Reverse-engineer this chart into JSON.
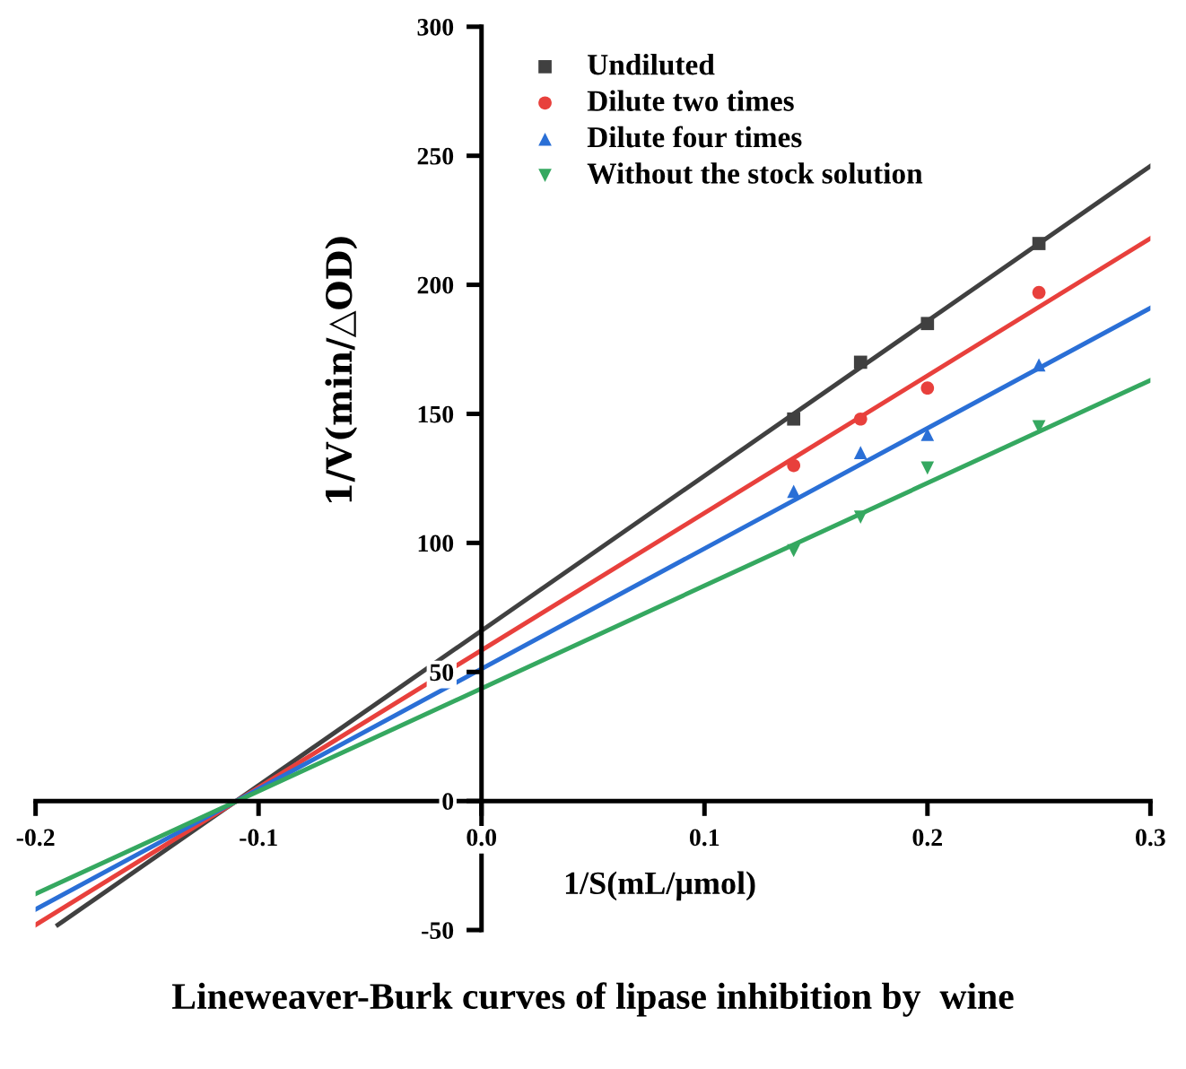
{
  "chart_data": {
    "type": "scatter",
    "title": "Lineweaver-Burk curves of lipase inhibition by  wine",
    "xlabel": "1/S(mL/μmol)",
    "ylabel": "1/V(min/△OD)",
    "xlim": [
      -0.2,
      0.3
    ],
    "ylim": [
      -50,
      300
    ],
    "xticks": [
      {
        "value": -0.2,
        "label": "-0.2"
      },
      {
        "value": -0.1,
        "label": "-0.1"
      },
      {
        "value": 0,
        "label": "0.0"
      },
      0.1,
      0.2,
      0.3
    ],
    "yticks": [
      {
        "value": -50,
        "label": "-50"
      },
      0,
      50,
      100,
      150,
      200,
      250,
      300
    ],
    "legend": "top right",
    "grid": false,
    "series": [
      {
        "name": "Undiluted",
        "marker": "square",
        "color": "#404040",
        "x": [
          0.14,
          0.17,
          0.2,
          0.25
        ],
        "values": [
          148,
          170,
          185,
          216
        ]
      },
      {
        "name": "Dilute two times",
        "marker": "circle",
        "color": "#e8403c",
        "x": [
          0.14,
          0.17,
          0.2,
          0.25
        ],
        "values": [
          130,
          148,
          160,
          197
        ]
      },
      {
        "name": "Dilute four times",
        "marker": "triangle",
        "color": "#2a6fd6",
        "x": [
          0.14,
          0.17,
          0.2,
          0.25
        ],
        "values": [
          120,
          135,
          142,
          169
        ]
      },
      {
        "name": "Without the stock solution",
        "marker": "triangle_down",
        "color": "#35a860",
        "x": [
          0.14,
          0.17,
          0.2,
          0.25
        ],
        "values": [
          97,
          110,
          129,
          145
        ]
      },
      {
        "type": "line",
        "color": "#404040",
        "x": [
          -0.19,
          0.3
        ],
        "values": [
          -48,
          246
        ]
      },
      {
        "type": "line",
        "color": "#e8403c",
        "x": [
          -0.2,
          0.3
        ],
        "values": [
          -48,
          218
        ]
      },
      {
        "type": "line",
        "color": "#2a6fd6",
        "x": [
          -0.2,
          0.3
        ],
        "values": [
          -42,
          191
        ]
      },
      {
        "type": "line",
        "color": "#35a860",
        "x": [
          -0.2,
          0.3
        ],
        "values": [
          -36,
          163
        ]
      }
    ]
  }
}
